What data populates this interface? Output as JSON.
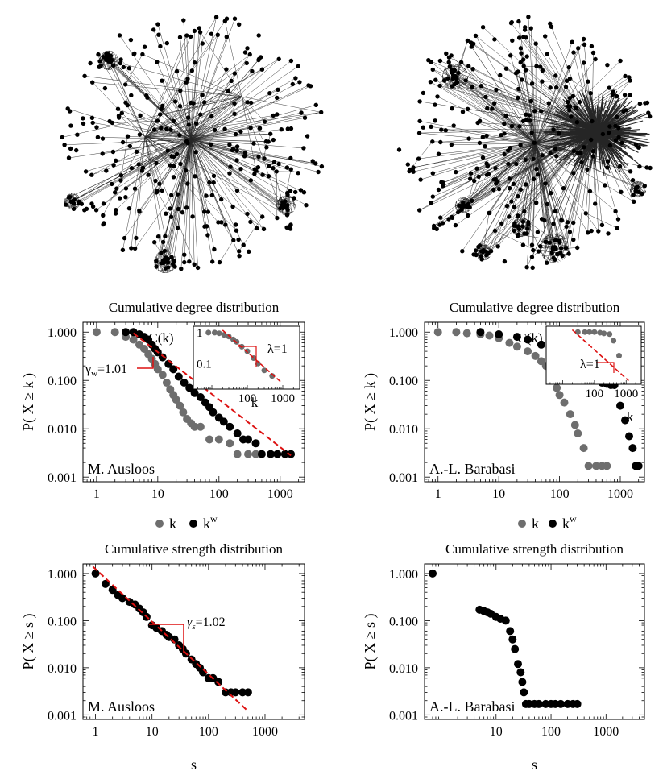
{
  "colors": {
    "gray": "#6e6e6e",
    "black": "#000000",
    "fit": "#dd1111"
  },
  "chart_data": [
    {
      "type": "scatter",
      "title": "Cumulative degree distribution",
      "ylabel": "P( X ≥ k )",
      "xlabel": "",
      "log_x": true,
      "log_y": true,
      "xlim": [
        0.6,
        2500
      ],
      "ylim": [
        0.0008,
        1.6
      ],
      "x_ticks": [
        "1",
        "10",
        "100",
        "1000"
      ],
      "y_ticks": [
        "1.000",
        "0.100",
        "0.010",
        "0.001"
      ],
      "corner_label": "M. Ausloos",
      "legend": {
        "k": "k",
        "kw_base": "k",
        "kw_sup": "w"
      },
      "fit": {
        "label_base": "γ",
        "label_sub": "w",
        "label_rest": "=1.01",
        "x": [
          4,
          1500
        ],
        "y": [
          0.95,
          0.0028
        ]
      },
      "series": [
        {
          "color": "gray",
          "x": [
            1,
            2,
            3,
            4,
            5,
            6,
            7,
            8,
            9,
            10,
            12,
            14,
            16,
            18,
            20,
            23,
            26,
            30,
            35,
            40,
            50,
            70,
            100,
            150,
            200,
            300,
            400
          ],
          "y": [
            1.0,
            1.0,
            0.8,
            0.7,
            0.55,
            0.45,
            0.35,
            0.28,
            0.22,
            0.17,
            0.13,
            0.09,
            0.065,
            0.05,
            0.04,
            0.03,
            0.022,
            0.016,
            0.013,
            0.011,
            0.011,
            0.006,
            0.006,
            0.005,
            0.003,
            0.003,
            0.003
          ]
        },
        {
          "color": "black",
          "x": [
            3,
            4,
            5,
            6,
            7,
            8,
            9,
            10,
            12,
            15,
            18,
            22,
            27,
            33,
            40,
            50,
            60,
            70,
            80,
            100,
            120,
            150,
            200,
            250,
            300,
            400,
            500,
            700,
            900,
            1200,
            1500
          ],
          "y": [
            1.0,
            1.0,
            0.9,
            0.8,
            0.7,
            0.55,
            0.45,
            0.38,
            0.3,
            0.22,
            0.17,
            0.12,
            0.09,
            0.07,
            0.055,
            0.045,
            0.035,
            0.028,
            0.022,
            0.017,
            0.014,
            0.011,
            0.008,
            0.006,
            0.006,
            0.005,
            0.003,
            0.003,
            0.003,
            0.003,
            0.003
          ]
        }
      ],
      "inset": {
        "ylabel": "C(k)",
        "xlabel": "k",
        "log_x": true,
        "log_y": true,
        "xlim": [
          3,
          3000
        ],
        "ylim": [
          0.015,
          1.6
        ],
        "x_ticks": [
          "100",
          "1000"
        ],
        "y_ticks": [
          "1",
          "0.1"
        ],
        "fit": {
          "label": "λ=1",
          "x": [
            20,
            900
          ],
          "y": [
            1.2,
            0.025
          ]
        },
        "series": {
          "color": "gray",
          "x": [
            8,
            12,
            16,
            22,
            30,
            40,
            50,
            70,
            100,
            150,
            200,
            300,
            500
          ],
          "y": [
            1.0,
            1.0,
            0.95,
            0.85,
            0.75,
            0.6,
            0.5,
            0.35,
            0.25,
            0.15,
            0.1,
            0.06,
            0.04
          ]
        }
      }
    },
    {
      "type": "scatter",
      "title": "Cumulative degree distribution",
      "ylabel": "P( X ≥ k )",
      "xlabel": "",
      "log_x": true,
      "log_y": true,
      "xlim": [
        0.6,
        2500
      ],
      "ylim": [
        0.0008,
        1.6
      ],
      "x_ticks": [
        "1",
        "10",
        "100",
        "1000"
      ],
      "y_ticks": [
        "1.000",
        "0.100",
        "0.010",
        "0.001"
      ],
      "corner_label": "A.-L. Barabasi",
      "legend": {
        "k": "k",
        "kw_base": "k",
        "kw_sup": "w"
      },
      "series": [
        {
          "color": "gray",
          "x": [
            1,
            2,
            3,
            5,
            7,
            10,
            15,
            20,
            30,
            40,
            50,
            60,
            70,
            80,
            90,
            100,
            120,
            150,
            180,
            200,
            250,
            300,
            400,
            500,
            600
          ],
          "y": [
            1.0,
            1.0,
            0.95,
            0.9,
            0.85,
            0.75,
            0.6,
            0.5,
            0.4,
            0.32,
            0.25,
            0.2,
            0.15,
            0.1,
            0.07,
            0.05,
            0.035,
            0.02,
            0.012,
            0.008,
            0.004,
            0.0017,
            0.0017,
            0.0017,
            0.0017
          ]
        },
        {
          "color": "black",
          "x": [
            5,
            10,
            20,
            30,
            50,
            70,
            100,
            150,
            200,
            300,
            400,
            500,
            600,
            700,
            800,
            1000,
            1200,
            1400,
            1600,
            1800,
            2000
          ],
          "y": [
            1.0,
            0.9,
            0.8,
            0.7,
            0.55,
            0.45,
            0.35,
            0.2,
            0.15,
            0.12,
            0.1,
            0.09,
            0.085,
            0.08,
            0.08,
            0.03,
            0.015,
            0.007,
            0.004,
            0.0017,
            0.0017
          ]
        }
      ],
      "inset": {
        "ylabel": "C(k)",
        "xlabel": "k",
        "log_x": true,
        "log_y": true,
        "xlim": [
          3,
          3000
        ],
        "ylim": [
          0.015,
          1.6
        ],
        "x_ticks": [
          "100",
          "1000"
        ],
        "y_ticks": [],
        "fit": {
          "label": "λ=1",
          "x": [
            20,
            1200
          ],
          "y": [
            1.2,
            0.02
          ]
        },
        "series": {
          "color": "gray",
          "x": [
            30,
            50,
            70,
            100,
            150,
            200,
            300,
            400,
            600
          ],
          "y": [
            1.0,
            1.0,
            1.0,
            1.0,
            0.95,
            0.9,
            0.85,
            0.5,
            0.15
          ]
        }
      }
    },
    {
      "type": "scatter",
      "title": "Cumulative strength distribution",
      "ylabel": "P( X ≥ s )",
      "xlabel": "s",
      "log_x": true,
      "log_y": true,
      "xlim": [
        0.6,
        5000
      ],
      "ylim": [
        0.0008,
        1.6
      ],
      "x_ticks": [
        "1",
        "10",
        "100",
        "1000"
      ],
      "y_ticks": [
        "1.000",
        "0.100",
        "0.010",
        "0.001"
      ],
      "corner_label": "M. Ausloos",
      "fit": {
        "label_base": "γ",
        "label_sub": "s",
        "label_rest": "=1.02",
        "x": [
          0.9,
          500
        ],
        "y": [
          1.4,
          0.0012
        ]
      },
      "series": [
        {
          "color": "black",
          "x": [
            1,
            1.5,
            2,
            2.5,
            3,
            4,
            5,
            6,
            7,
            8,
            10,
            12,
            15,
            18,
            20,
            25,
            30,
            35,
            40,
            50,
            60,
            70,
            80,
            100,
            120,
            150,
            200,
            250,
            300,
            400,
            500
          ],
          "y": [
            1.0,
            0.6,
            0.45,
            0.35,
            0.3,
            0.25,
            0.22,
            0.18,
            0.15,
            0.12,
            0.08,
            0.07,
            0.06,
            0.05,
            0.045,
            0.04,
            0.03,
            0.025,
            0.02,
            0.015,
            0.012,
            0.01,
            0.008,
            0.006,
            0.006,
            0.005,
            0.003,
            0.003,
            0.003,
            0.003,
            0.003
          ]
        }
      ]
    },
    {
      "type": "scatter",
      "title": "Cumulative strength distribution",
      "ylabel": "P( X ≥ s )",
      "xlabel": "s",
      "log_x": true,
      "log_y": true,
      "xlim": [
        0.5,
        5000
      ],
      "ylim": [
        0.0008,
        1.6
      ],
      "x_ticks": [
        "10",
        "100",
        "1000"
      ],
      "y_ticks": [
        "1.000",
        "0.100",
        "0.010",
        "0.001"
      ],
      "corner_label": "A.-L. Barabasi",
      "series": [
        {
          "color": "black",
          "x": [
            0.7,
            5,
            6,
            7,
            8,
            10,
            12,
            15,
            18,
            20,
            22,
            25,
            28,
            30,
            32,
            35,
            40,
            50,
            60,
            80,
            100,
            120,
            150,
            200,
            250,
            300
          ],
          "y": [
            1.0,
            0.17,
            0.16,
            0.15,
            0.14,
            0.12,
            0.11,
            0.1,
            0.06,
            0.04,
            0.025,
            0.012,
            0.008,
            0.005,
            0.003,
            0.0017,
            0.0017,
            0.0017,
            0.0017,
            0.0017,
            0.0017,
            0.0017,
            0.0017,
            0.0017,
            0.0017,
            0.0017
          ]
        }
      ]
    }
  ]
}
